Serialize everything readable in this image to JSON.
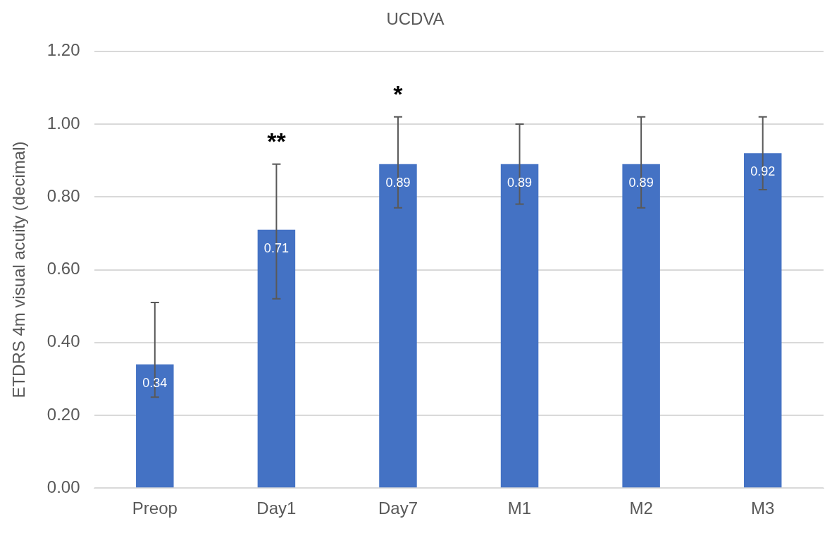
{
  "chart_data": {
    "type": "bar",
    "title": "UCDVA",
    "ylabel": "ETDRS 4m visual acuity (decimal)",
    "categories": [
      "Preop",
      "Day1",
      "Day7",
      "M1",
      "M2",
      "M3"
    ],
    "values": [
      0.34,
      0.71,
      0.89,
      0.89,
      0.89,
      0.92
    ],
    "color": "#4472c4",
    "errors": [
      [
        0.25,
        0.51
      ],
      [
        0.52,
        0.89
      ],
      [
        0.77,
        1.02
      ],
      [
        0.78,
        1.0
      ],
      [
        0.77,
        1.02
      ],
      [
        0.82,
        1.02
      ]
    ],
    "data_labels": true,
    "annotations": [
      {
        "text": "**",
        "x": "Day1",
        "y": 0.89
      },
      {
        "text": "*",
        "x": "Day7",
        "y": 1.02
      }
    ],
    "ylim": [
      0,
      1.2
    ],
    "yticks": [
      {
        "value": 0,
        "label": "0.00"
      },
      {
        "value": 0.2,
        "label": "0.20"
      },
      {
        "value": 0.4,
        "label": "0.40"
      },
      {
        "value": 0.6,
        "label": "0.60"
      },
      {
        "value": 0.8,
        "label": "0.80"
      },
      {
        "value": 1.0,
        "label": "1.00"
      },
      {
        "value": 1.2,
        "label": "1.20"
      }
    ],
    "grid": "y",
    "legend": false
  }
}
